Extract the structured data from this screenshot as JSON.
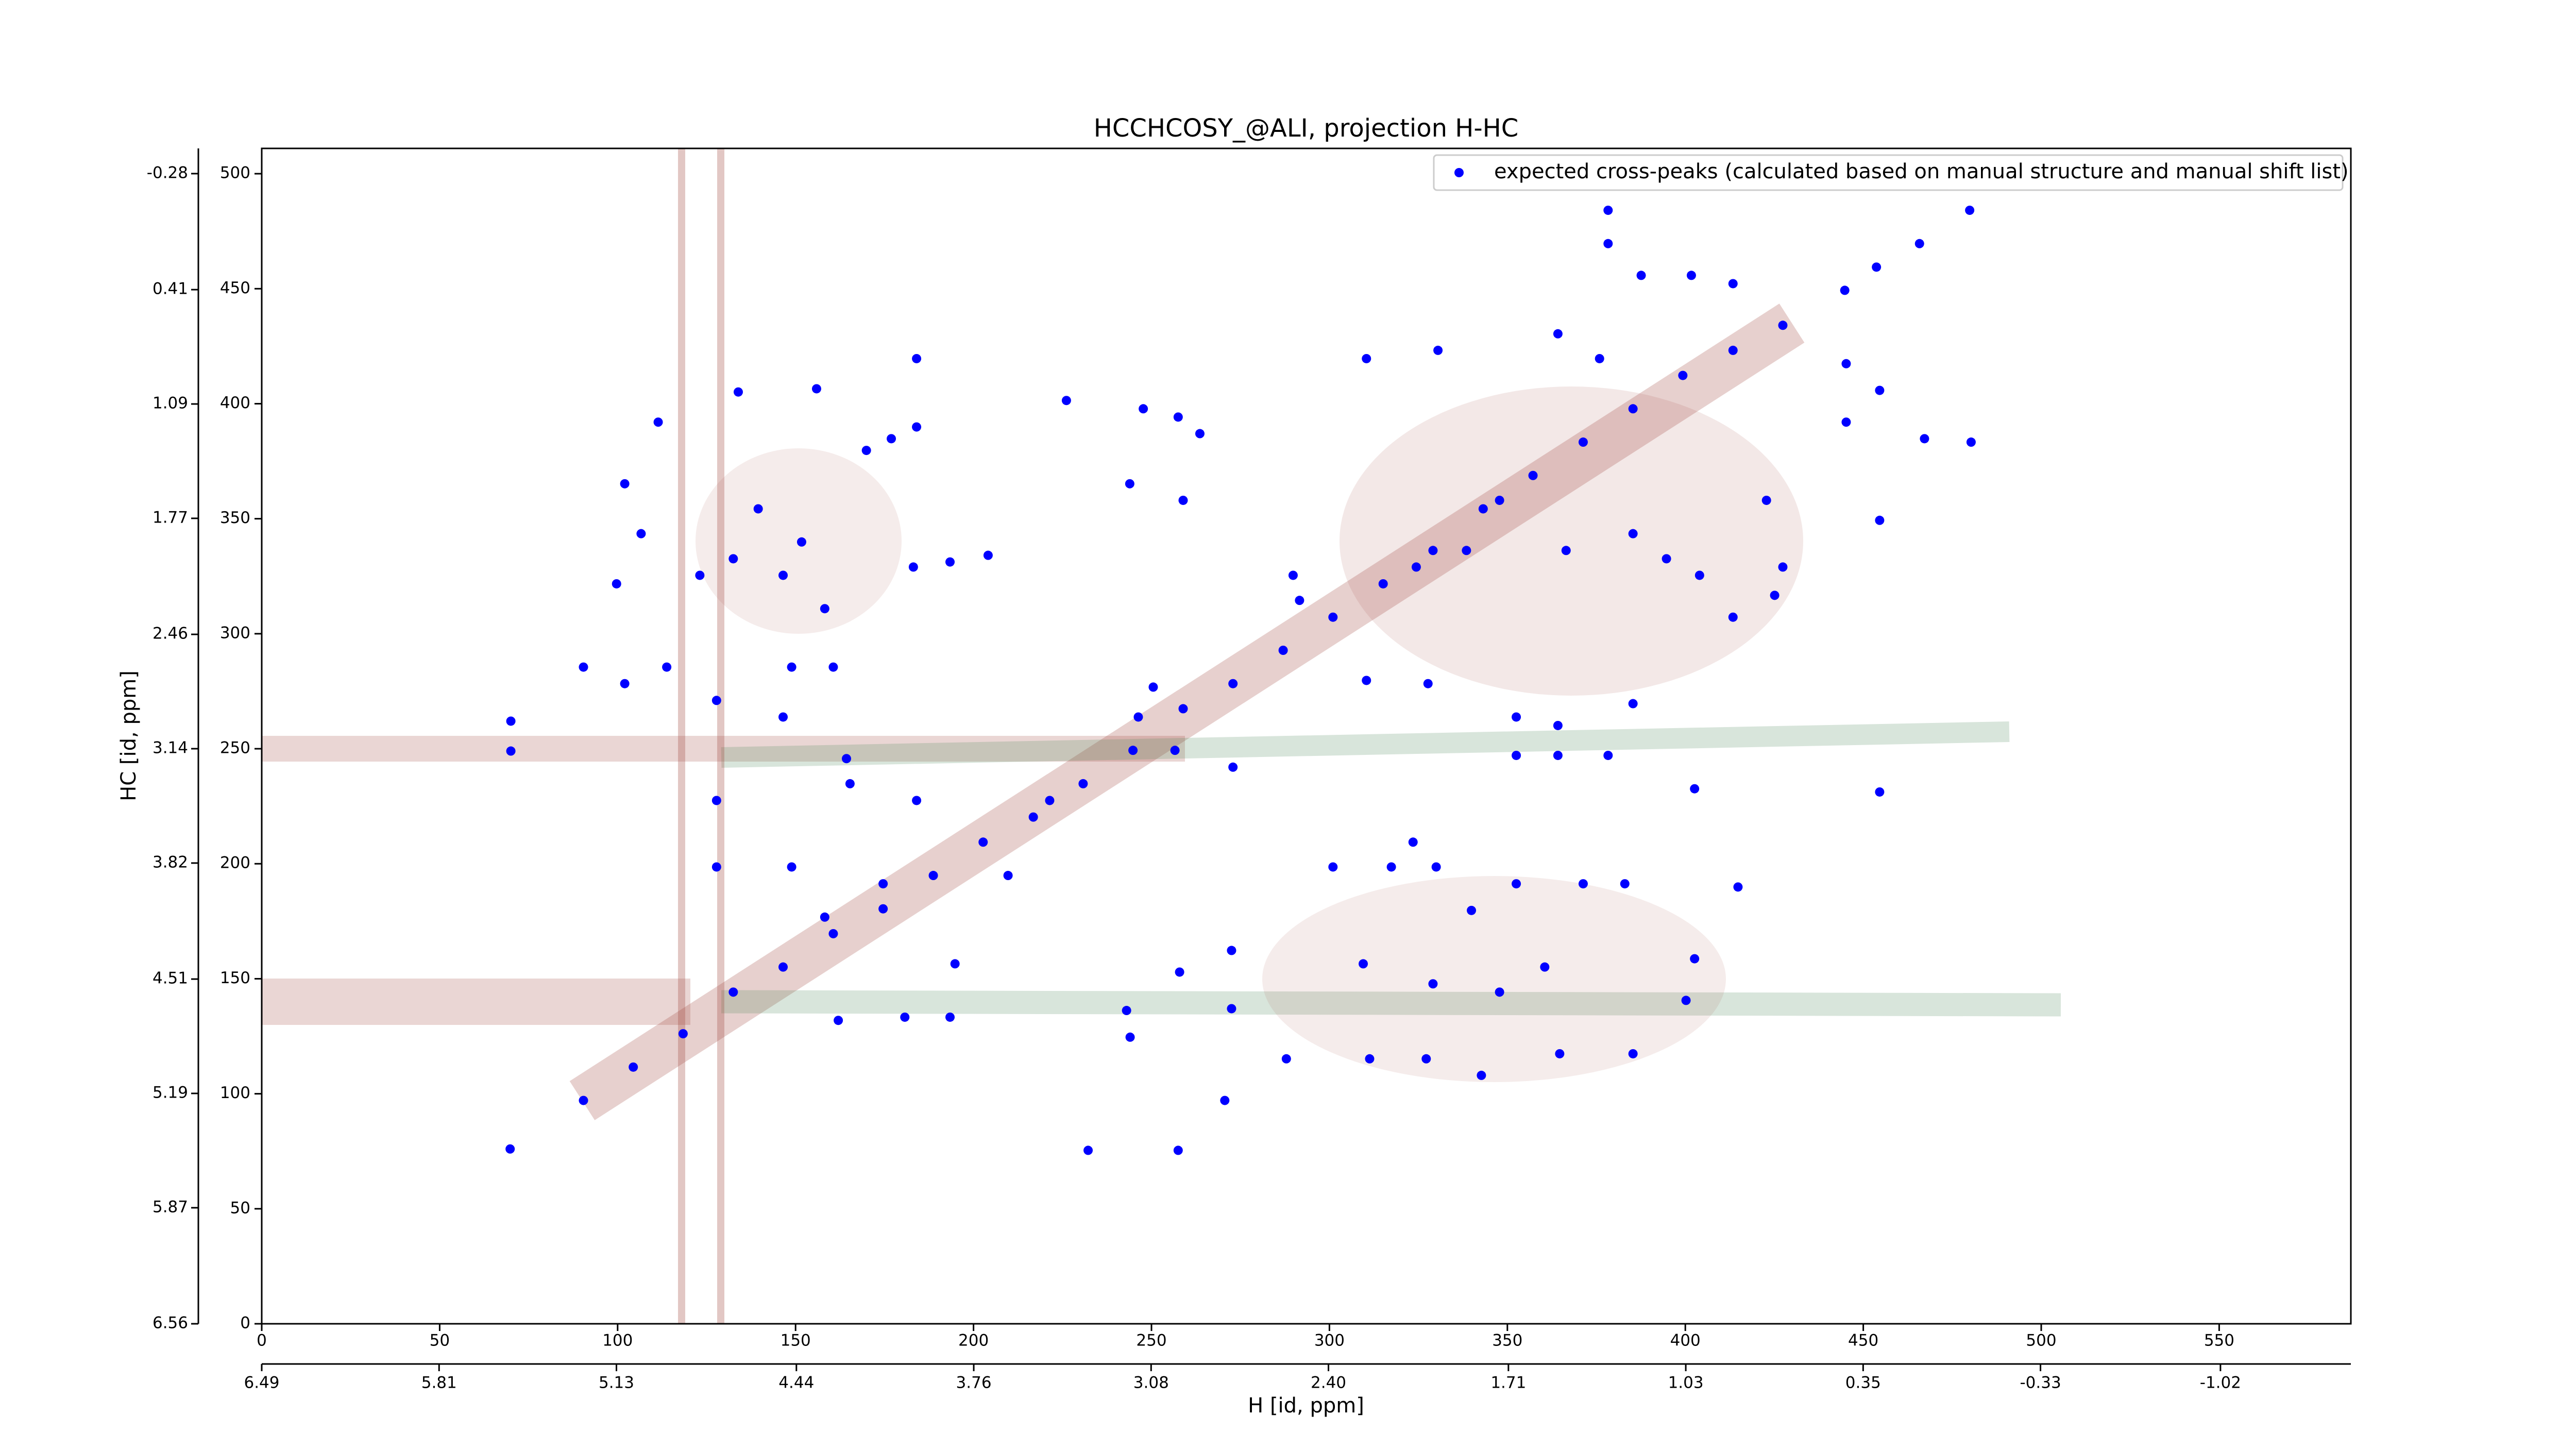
{
  "chart_data": {
    "type": "scatter",
    "title": "HCCHCOSY_@ALI, projection H-HC",
    "x_label": "H [id, ppm]",
    "y_label": "HC [id, ppm]",
    "xlim": [
      0,
      587
    ],
    "ylim": [
      0,
      511
    ],
    "xticks": [
      0,
      50,
      100,
      150,
      200,
      250,
      300,
      350,
      400,
      450,
      500,
      550
    ],
    "yticks": [
      0,
      50,
      100,
      150,
      200,
      250,
      300,
      350,
      400,
      450,
      500
    ],
    "x2lim": [
      6.49,
      -1.52
    ],
    "x2ticks": [
      6.49,
      5.81,
      5.13,
      4.44,
      3.76,
      3.08,
      {
        "value": 2.4,
        "label": "2.40"
      },
      1.71,
      1.03,
      0.35,
      -0.33,
      -1.02
    ],
    "y2lim": [
      6.56,
      -0.43
    ],
    "y2ticks": [
      6.56,
      5.87,
      5.19,
      4.51,
      3.82,
      3.14,
      2.46,
      1.77,
      1.09,
      0.41,
      -0.28
    ],
    "legend": "upper right",
    "series": [
      {
        "name": "expected cross-peaks (calculated based on manual structure and manual shift list)",
        "color": "#0000ff",
        "x": [
          90.4,
          104.4,
          118.4,
          132.5,
          146.5,
          160.6,
          174.6,
          188.7,
          202.7,
          216.8,
          230.8,
          244.8,
          258.9,
          272.9,
          287.0,
          301.0,
          315.1,
          329.1,
          343.2,
          357.2,
          371.3,
          385.3,
          399.3,
          413.4,
          427.4,
          69.8,
          70,
          70,
          479.9,
          465.8,
          378.3,
          378.3,
          444.8,
          445.2,
          445.2,
          467.2,
          480.3,
          454.6,
          414.8,
          402.6,
          400.2,
          385.3,
          364.7,
          342.7,
          327.2,
          311.3,
          287.9,
          270.6,
          257.5,
          232.2,
          244,
          272.5,
          243,
          193.4,
          180.7,
          162,
          194.8,
          272.5,
          257.9,
          309.5,
          329.1,
          347.8,
          360.5,
          339.9,
          323.5,
          317.4,
          330,
          352.5,
          371.3,
          383,
          352.5,
          364.2,
          385.3,
          378.3,
          402.6,
          352.5,
          364.2,
          327.7,
          310.4,
          289.8,
          291.6,
          324.4,
          338.5,
          347.8,
          366.5,
          385.3,
          394.7,
          413.4,
          404.0,
          422.8,
          427.4,
          425.1,
          375.9,
          364.2,
          330.5,
          310.4,
          401.7,
          387.6,
          413.4,
          454.6,
          454.6,
          453.7,
          247.7,
          257.5,
          263.6,
          243.9,
          258.9,
          204.1,
          193.4,
          183.1,
          184,
          176.9,
          169.9,
          155.9,
          133.9,
          184,
          226.1,
          139.5,
          151.7,
          146.5,
          158.2,
          132.5,
          111.4,
          102,
          106.6,
          99.7,
          123.1,
          90.4,
          102,
          113.8,
          148.9,
          160.6,
          146.5,
          127.8,
          127.8,
          164.3,
          165.3,
          127.8,
          148.9,
          158.2,
          184,
          174.6,
          209.7,
          221.4,
          246.3,
          256.6,
          250.5,
          272.9,
          301
        ],
        "values": [
          97.1,
          111.6,
          126.1,
          144.2,
          155.1,
          169.6,
          180.4,
          194.9,
          209.4,
          220.3,
          234.8,
          249.3,
          267.4,
          278.3,
          292.8,
          307.2,
          321.7,
          336.2,
          354.3,
          368.8,
          383.3,
          397.8,
          412.3,
          423.2,
          434.1,
          76,
          262,
          249,
          484.1,
          469.6,
          484.1,
          469.6,
          449.3,
          417.4,
          392,
          384.8,
          383.3,
          231.2,
          189.9,
          158.7,
          140.6,
          117.4,
          117.4,
          108,
          115.2,
          115.2,
          115.2,
          97.1,
          75.4,
          75.4,
          124.6,
          137,
          136.2,
          133.3,
          133.3,
          131.9,
          156.5,
          162.3,
          152.9,
          156.5,
          147.8,
          144.2,
          155.1,
          179.7,
          209.4,
          198.6,
          198.6,
          191.3,
          191.3,
          191.3,
          247.1,
          247.1,
          269.6,
          247.1,
          232.6,
          263.8,
          260.1,
          278.3,
          279.7,
          325.4,
          314.5,
          329,
          336.2,
          358,
          336.2,
          343.5,
          332.6,
          307.2,
          325.4,
          358,
          329,
          316.7,
          419.6,
          430.4,
          423.2,
          419.6,
          455.8,
          455.8,
          452.2,
          405.8,
          349.3,
          459.4,
          397.8,
          394.2,
          387,
          365.2,
          358,
          334.1,
          331.2,
          329,
          389.9,
          384.8,
          379.7,
          406.5,
          405.1,
          419.6,
          401.4,
          354.3,
          339.9,
          325.4,
          310.9,
          332.6,
          392,
          365.2,
          343.5,
          321.7,
          325.4,
          285.5,
          278.3,
          285.5,
          285.5,
          285.5,
          263.8,
          271,
          227.5,
          245.7,
          234.8,
          198.6,
          198.6,
          176.8,
          227.5,
          191.3,
          194.9,
          227.5,
          263.8,
          249.3,
          276.8,
          242,
          198.6
        ]
      }
    ]
  }
}
